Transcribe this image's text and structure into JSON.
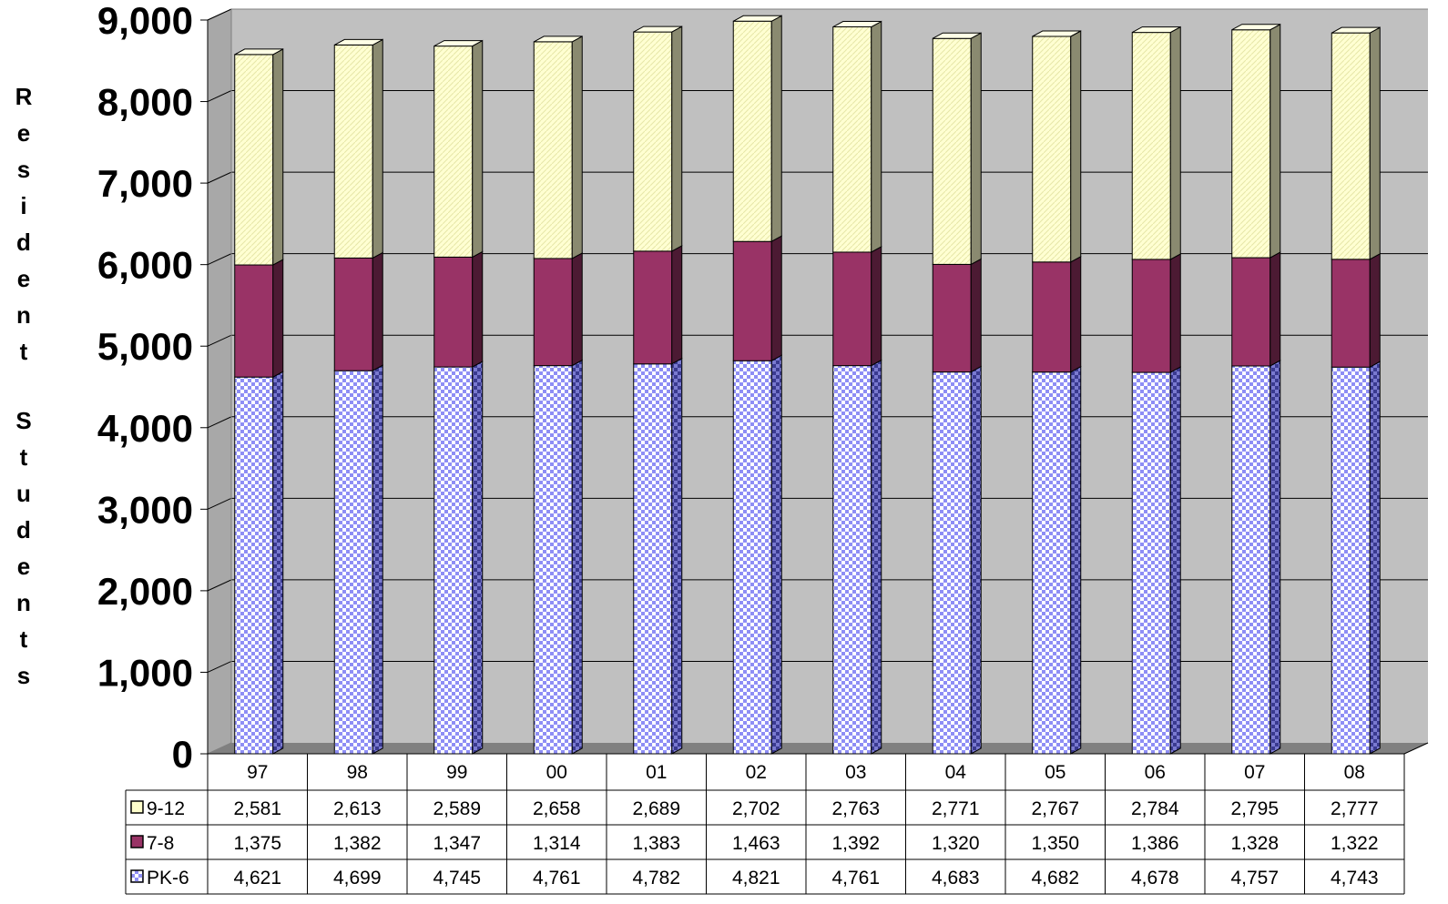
{
  "chart_data": {
    "type": "bar",
    "stacked": true,
    "three_d": true,
    "title": "",
    "xlabel": "",
    "ylabel": "Resident Students",
    "ylim": [
      0,
      9000
    ],
    "yticks": [
      0,
      1000,
      2000,
      3000,
      4000,
      5000,
      6000,
      7000,
      8000,
      9000
    ],
    "ytick_labels": [
      "0",
      "1,000",
      "2,000",
      "3,000",
      "4,000",
      "5,000",
      "6,000",
      "7,000",
      "8,000",
      "9,000"
    ],
    "grid": true,
    "legend": "data-table",
    "categories": [
      "97",
      "98",
      "99",
      "00",
      "01",
      "02",
      "03",
      "04",
      "05",
      "06",
      "07",
      "08"
    ],
    "series": [
      {
        "name": "PK-6",
        "color": "#9999ff",
        "pattern": "checker",
        "values": [
          4621,
          4699,
          4745,
          4761,
          4782,
          4821,
          4761,
          4683,
          4682,
          4678,
          4757,
          4743
        ],
        "labels": [
          "4,621",
          "4,699",
          "4,745",
          "4,761",
          "4,782",
          "4,821",
          "4,761",
          "4,683",
          "4,682",
          "4,678",
          "4,757",
          "4,743"
        ]
      },
      {
        "name": "7-8",
        "color": "#993366",
        "pattern": "solid",
        "values": [
          1375,
          1382,
          1347,
          1314,
          1383,
          1463,
          1392,
          1320,
          1350,
          1386,
          1328,
          1322
        ],
        "labels": [
          "1,375",
          "1,382",
          "1,347",
          "1,314",
          "1,383",
          "1,463",
          "1,392",
          "1,320",
          "1,350",
          "1,386",
          "1,328",
          "1,322"
        ]
      },
      {
        "name": "9-12",
        "color": "#ffffcc",
        "pattern": "diagonal",
        "values": [
          2581,
          2613,
          2589,
          2658,
          2689,
          2702,
          2763,
          2771,
          2767,
          2784,
          2795,
          2777
        ],
        "labels": [
          "2,581",
          "2,613",
          "2,589",
          "2,658",
          "2,689",
          "2,702",
          "2,763",
          "2,771",
          "2,767",
          "2,784",
          "2,795",
          "2,777"
        ]
      }
    ],
    "table_row_order": [
      "9-12",
      "7-8",
      "PK-6"
    ],
    "colors": {
      "wall": "#c0c0c0",
      "wall_side": "#a0a0a0",
      "floor": "#808080",
      "grid": "#000000"
    }
  }
}
